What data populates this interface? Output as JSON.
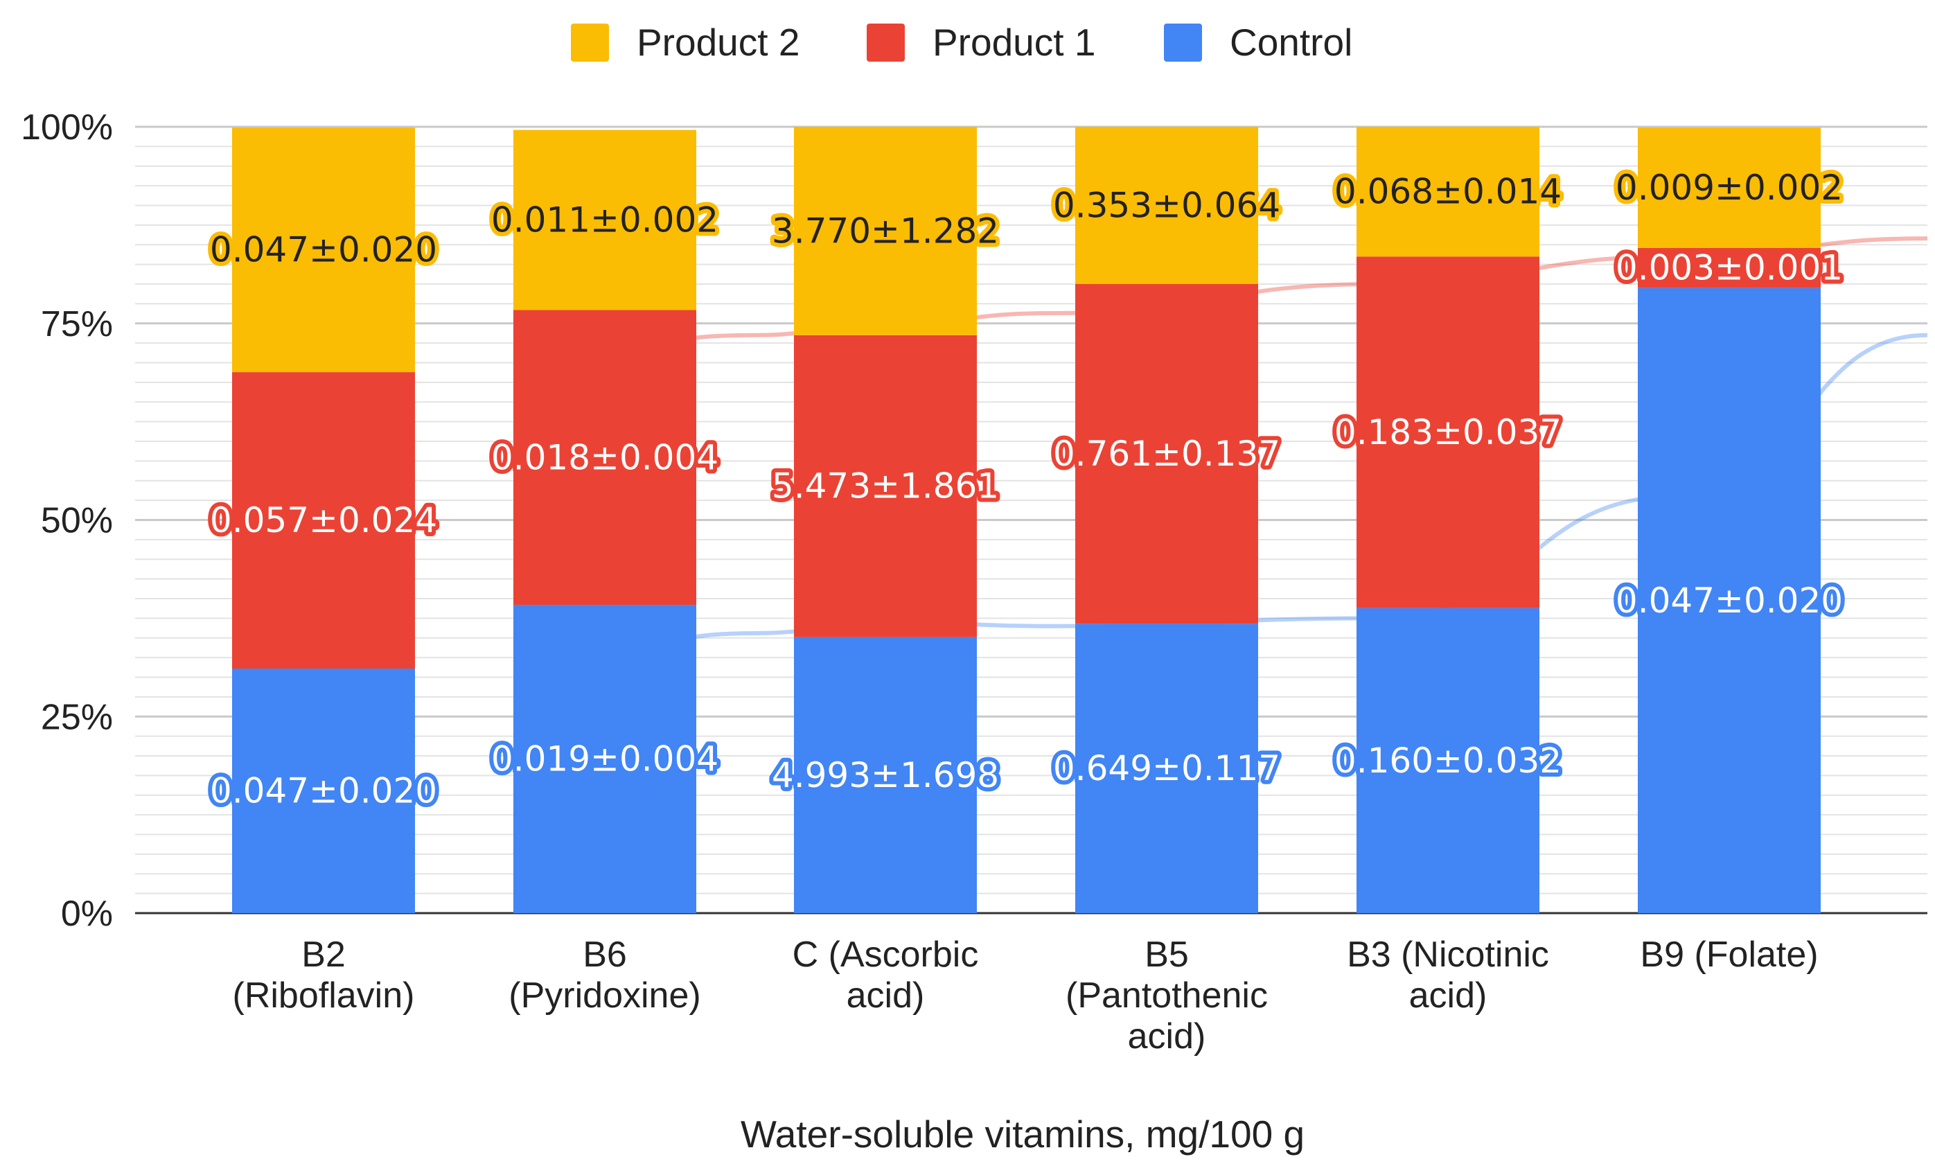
{
  "chart_data": {
    "type": "bar",
    "stacked": "percent",
    "title": "",
    "xlabel": "Water-soluble vitamins, mg/100 g",
    "ylabel": "",
    "ylim": [
      0,
      100
    ],
    "yticks": [
      "0%",
      "25%",
      "50%",
      "75%",
      "100%"
    ],
    "ytick_values": [
      0,
      25,
      50,
      75,
      100
    ],
    "legend_position": "top-center",
    "categories": [
      [
        "B2",
        "(Riboflavin)"
      ],
      [
        "B6",
        "(Pyridoxine)"
      ],
      [
        "C (Ascorbic",
        "acid)"
      ],
      [
        "B5",
        "(Pantothenic",
        "acid)"
      ],
      [
        "B3 (Nicotinic",
        "acid)"
      ],
      [
        "B9 (Folate)"
      ]
    ],
    "series": [
      {
        "name": "Control",
        "color": "#4285F4",
        "values": [
          0.047,
          0.019,
          4.993,
          0.649,
          0.16,
          0.047
        ],
        "labels": [
          "0.047±0.020",
          "0.019±0.004",
          "4.993±1.698",
          "0.649±0.117",
          "0.160±0.032",
          "0.047±0.020"
        ],
        "percent": [
          31.1,
          39.2,
          35.1,
          36.8,
          38.8,
          79.5
        ]
      },
      {
        "name": "Product 1",
        "color": "#EA4335",
        "values": [
          0.057,
          0.018,
          5.473,
          0.761,
          0.183,
          0.003
        ],
        "labels": [
          "0.057±0.024",
          "0.018±0.004",
          "5.473±1.861",
          "0.761±0.137",
          "0.183±0.037",
          "0.003±0.001"
        ],
        "percent": [
          37.7,
          37.5,
          38.4,
          43.2,
          44.7,
          5.1
        ]
      },
      {
        "name": "Product 2",
        "color": "#FBBC04",
        "values": [
          0.047,
          0.011,
          3.77,
          0.353,
          0.068,
          0.009
        ],
        "labels": [
          "0.047±0.020",
          "0.011±0.002",
          "3.770±1.282",
          "0.353±0.064",
          "0.068±0.014",
          "0.009±0.002"
        ],
        "percent": [
          31.1,
          22.9,
          26.5,
          20.0,
          16.5,
          15.3
        ]
      }
    ],
    "legend_order": [
      "Product 2",
      "Product 1",
      "Control"
    ],
    "trendlines": [
      {
        "series": "Control",
        "color": "#4285F4",
        "values": [
          34.2,
          35.6,
          37.0,
          36.5,
          37.5,
          53.0,
          73.5
        ]
      },
      {
        "series": "Product 1",
        "color": "#EA4335",
        "values": [
          72.5,
          73.5,
          75.0,
          76.3,
          80.0,
          83.5,
          85.8
        ]
      }
    ]
  }
}
